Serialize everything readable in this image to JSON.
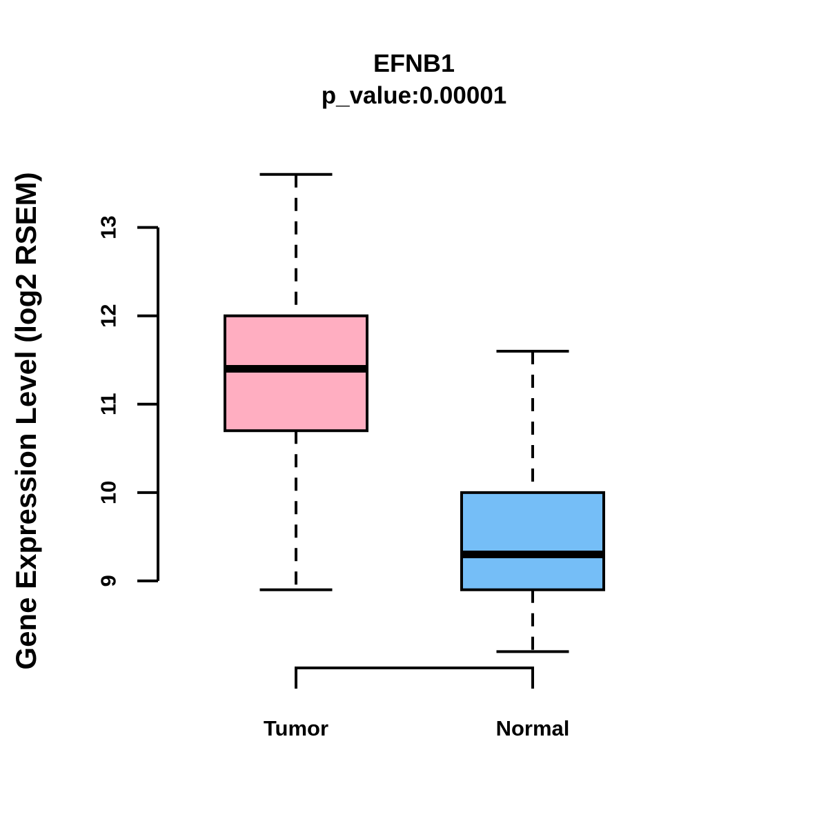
{
  "chart_data": {
    "type": "boxplot",
    "title": "EFNB1",
    "subtitle": "p_value:0.00001",
    "ylabel": "Gene Expression Level (log2 RSEM)",
    "xlabel": "",
    "categories": [
      "Tumor",
      "Normal"
    ],
    "yticks": [
      9,
      10,
      11,
      12,
      13
    ],
    "ylim": [
      8.0,
      13.7
    ],
    "grid": false,
    "legend": "none",
    "line_color": "#000000",
    "background_color": "#FFFFFF",
    "series": [
      {
        "name": "Tumor",
        "color": "#FFAEC1",
        "whisker_low": 8.9,
        "q1": 10.7,
        "median": 11.4,
        "q3": 12.0,
        "whisker_high": 13.6
      },
      {
        "name": "Normal",
        "color": "#75BEF7",
        "whisker_low": 8.2,
        "q1": 8.9,
        "median": 9.3,
        "q3": 10.0,
        "whisker_high": 11.6
      }
    ]
  }
}
